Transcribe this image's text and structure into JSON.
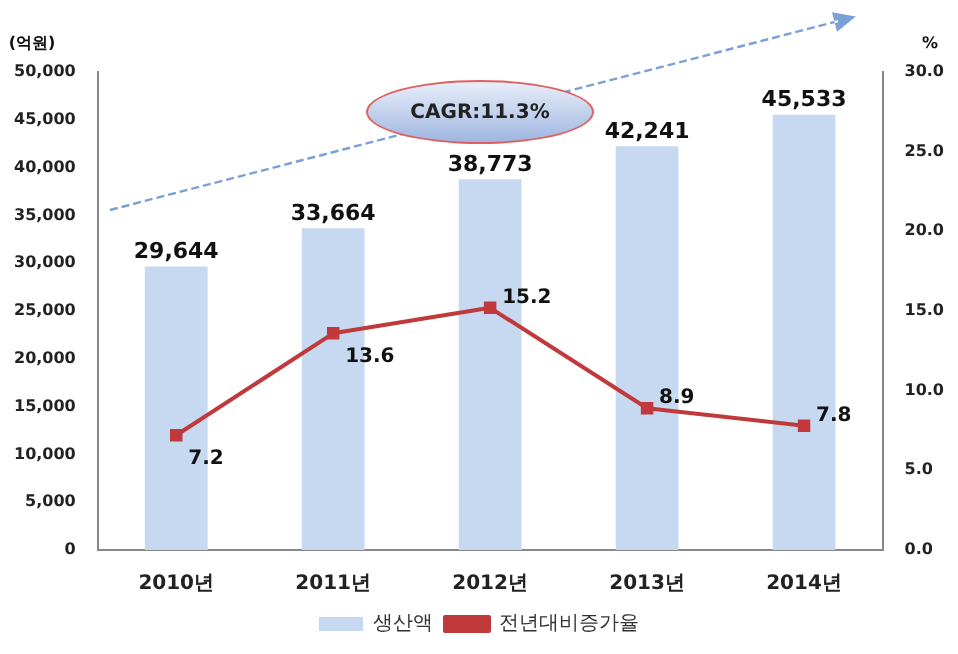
{
  "chart_data": {
    "type": "bar",
    "ylabel": "(억원)",
    "y2label": "%",
    "categories": [
      "2010년",
      "2011년",
      "2012년",
      "2013년",
      "2014년"
    ],
    "series": [
      {
        "name": "생산액",
        "type": "bar",
        "color": "#c6d9f1",
        "values": [
          29644,
          33664,
          38773,
          42241,
          45533
        ],
        "value_labels": [
          "29,644",
          "33,664",
          "38,773",
          "42,241",
          "45,533"
        ]
      },
      {
        "name": "전년대비증가율",
        "type": "line",
        "axis": "y2",
        "color": "#c0393b",
        "values": [
          7.2,
          13.6,
          15.2,
          8.9,
          7.8
        ]
      }
    ],
    "ylim": [
      0,
      50000
    ],
    "yticks": [
      {
        "value": 0,
        "label": "0"
      },
      {
        "value": 5000,
        "label": "5,000"
      },
      {
        "value": 10000,
        "label": "10,000"
      },
      {
        "value": 15000,
        "label": "15,000"
      },
      {
        "value": 20000,
        "label": "20,000"
      },
      {
        "value": 25000,
        "label": "25,000"
      },
      {
        "value": 30000,
        "label": "30,000"
      },
      {
        "value": 35000,
        "label": "35,000"
      },
      {
        "value": 40000,
        "label": "40,000"
      },
      {
        "value": 45000,
        "label": "45,000"
      },
      {
        "value": 50000,
        "label": "50,000"
      }
    ],
    "y2lim": [
      0,
      30
    ],
    "y2ticks": [
      {
        "value": 0,
        "label": "0.0"
      },
      {
        "value": 5,
        "label": "5.0"
      },
      {
        "value": 10,
        "label": "10.0"
      },
      {
        "value": 15,
        "label": "15.0"
      },
      {
        "value": 20,
        "label": "20.0"
      },
      {
        "value": 25,
        "label": "25.0"
      },
      {
        "value": 30,
        "label": "30.0"
      }
    ],
    "data_labels": true,
    "marker": "square",
    "grid": false,
    "legend": "bottom",
    "annotations": [
      "CAGR:11.3%"
    ]
  }
}
